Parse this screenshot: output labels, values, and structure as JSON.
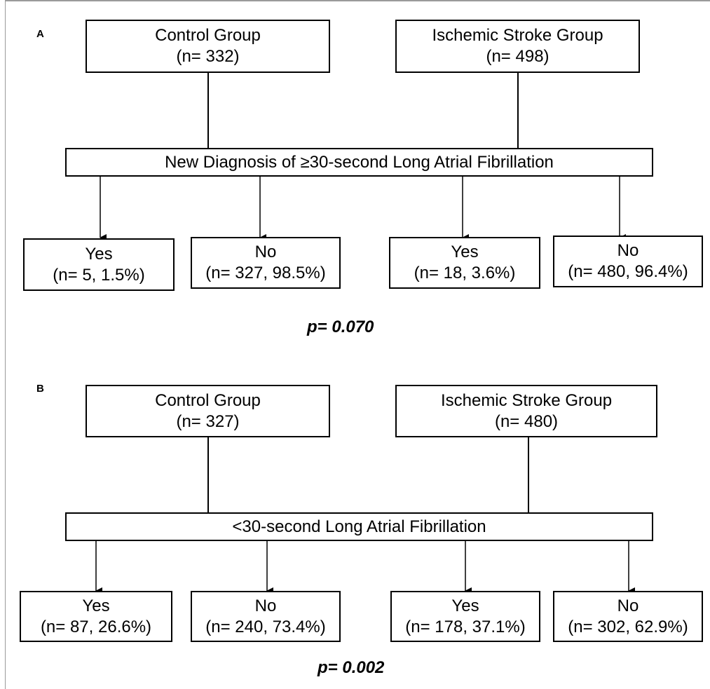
{
  "panels": [
    {
      "label": "A",
      "control": {
        "name": "Control Group",
        "n": "(n= 332)"
      },
      "stroke": {
        "name": "Ischemic Stroke Group",
        "n": "(n= 498)"
      },
      "diagnosis": "New Diagnosis of ≥30-second Long Atrial Fibrillation",
      "outcomes": [
        {
          "answer": "Yes",
          "detail": "(n= 5, 1.5%)"
        },
        {
          "answer": "No",
          "detail": "(n= 327, 98.5%)"
        },
        {
          "answer": "Yes",
          "detail": "(n= 18, 3.6%)"
        },
        {
          "answer": "No",
          "detail": "(n= 480, 96.4%)"
        }
      ],
      "p_value": "p= 0.070"
    },
    {
      "label": "B",
      "control": {
        "name": "Control Group",
        "n": "(n= 327)"
      },
      "stroke": {
        "name": "Ischemic Stroke Group",
        "n": "(n= 480)"
      },
      "diagnosis": "<30-second Long Atrial Fibrillation",
      "outcomes": [
        {
          "answer": "Yes",
          "detail": "(n= 87, 26.6%)"
        },
        {
          "answer": "No",
          "detail": "(n= 240, 73.4%)"
        },
        {
          "answer": "Yes",
          "detail": "(n= 178, 37.1%)"
        },
        {
          "answer": "No",
          "detail": "(n= 302, 62.9%)"
        }
      ],
      "p_value": "p= 0.002"
    }
  ]
}
